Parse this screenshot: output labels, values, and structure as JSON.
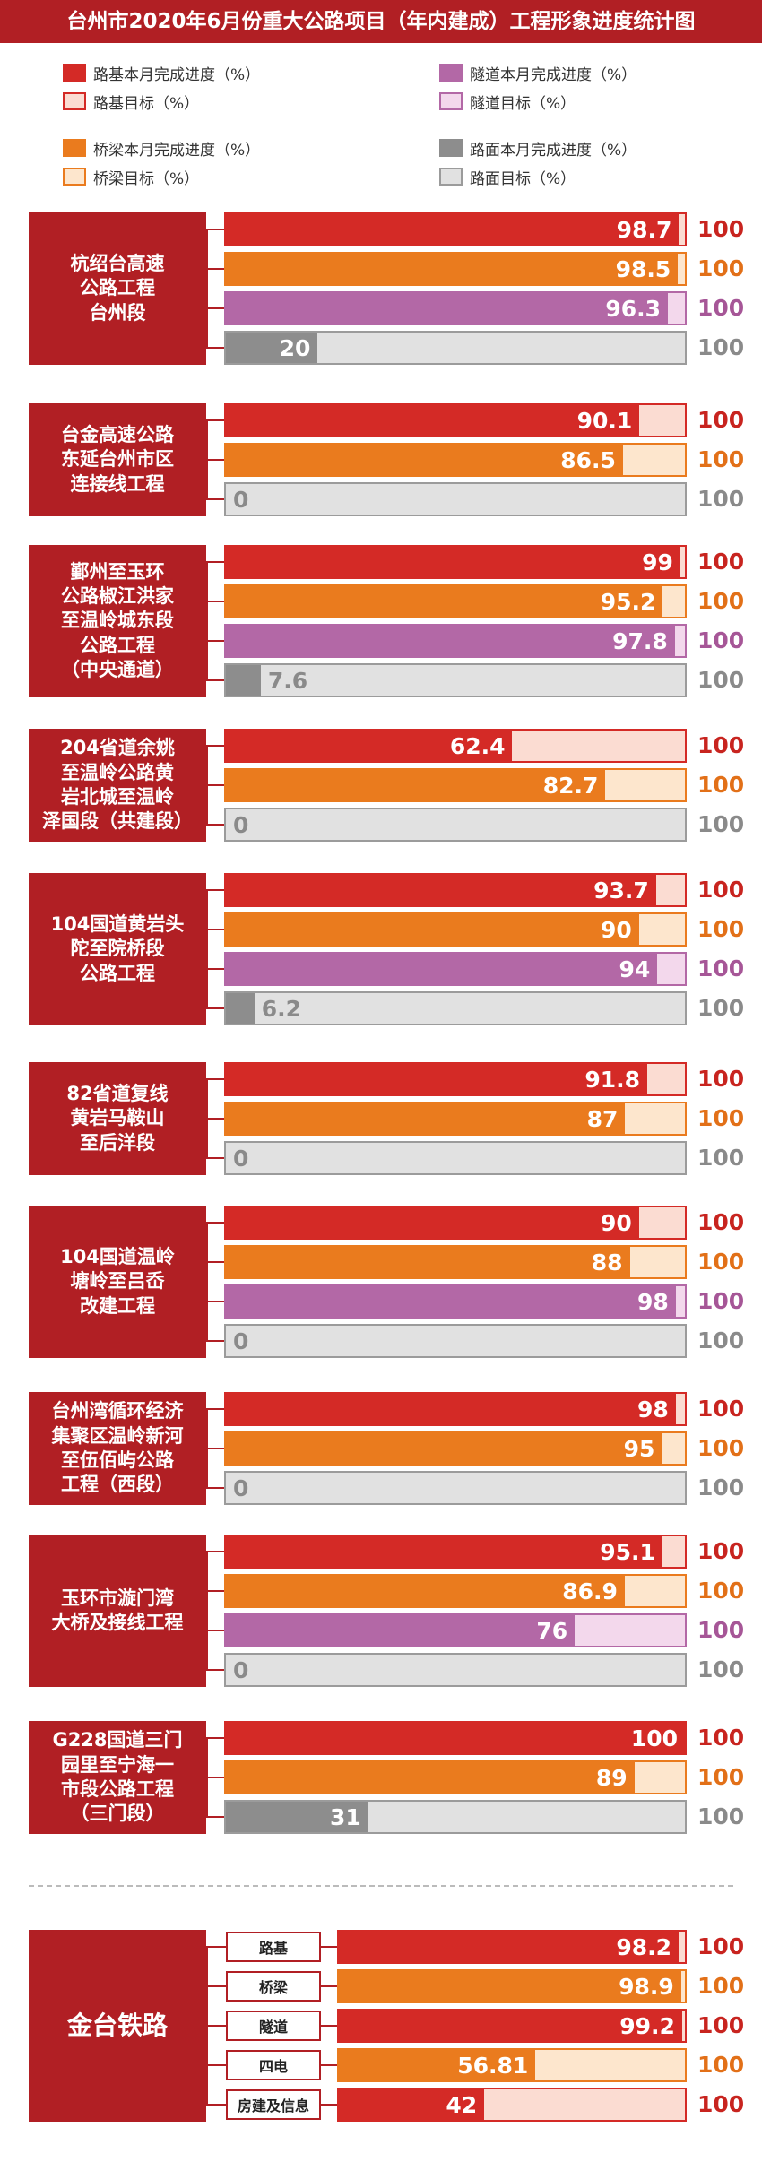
{
  "header": {
    "title": "台州市2020年6月份重大公路项目（年内建成）工程形象进度统计图"
  },
  "legend": [
    {
      "label": "路基本月完成进度（%）",
      "color": "#d42a26",
      "kind": "fill"
    },
    {
      "label": "路基目标（%）",
      "color": "#fbdcd2",
      "kind": "target",
      "border": "#d42a26"
    },
    {
      "label": "隧道本月完成进度（%）",
      "color": "#b368a6",
      "kind": "fill"
    },
    {
      "label": "隧道目标（%）",
      "color": "#f3d8ec",
      "kind": "target",
      "border": "#b368a6"
    },
    {
      "label": "桥梁本月完成进度（%）",
      "color": "#ea7b1e",
      "kind": "fill"
    },
    {
      "label": "桥梁目标（%）",
      "color": "#fde6cd",
      "kind": "target",
      "border": "#ea7b1e"
    },
    {
      "label": "路面本月完成进度（%）",
      "color": "#8d8d8d",
      "kind": "fill"
    },
    {
      "label": "路面目标（%）",
      "color": "#e1e1e1",
      "kind": "target",
      "border": "#9b9b9b"
    }
  ],
  "colors": {
    "subgrade": {
      "fill": "#d42a26",
      "target": "#fbdcd2",
      "border": "#d42a26",
      "label": "#c8241f"
    },
    "bridge": {
      "fill": "#ea7b1e",
      "target": "#fde6cd",
      "border": "#ea7b1e",
      "label": "#e27018"
    },
    "tunnel": {
      "fill": "#b368a6",
      "target": "#f3d8ec",
      "border": "#b368a6",
      "label": "#a65697"
    },
    "pavement": {
      "fill": "#8d8d8d",
      "target": "#e1e1e1",
      "border": "#9b9b9b",
      "label": "#8a8a8a"
    },
    "accent": "#b11f24"
  },
  "chart_data": {
    "type": "bar",
    "orientation": "horizontal",
    "xlim": [
      0,
      100
    ],
    "projects": [
      {
        "name": "杭绍台高速\n公路工程\n台州段",
        "bars": [
          {
            "cat": "subgrade",
            "value": 98.7,
            "target": 100
          },
          {
            "cat": "bridge",
            "value": 98.5,
            "target": 100
          },
          {
            "cat": "tunnel",
            "value": 96.3,
            "target": 100
          },
          {
            "cat": "pavement",
            "value": 20,
            "target": 100
          }
        ]
      },
      {
        "name": "台金高速公路\n东延台州市区\n连接线工程",
        "bars": [
          {
            "cat": "subgrade",
            "value": 90.1,
            "target": 100
          },
          {
            "cat": "bridge",
            "value": 86.5,
            "target": 100
          },
          {
            "cat": "pavement",
            "value": 0,
            "target": 100
          }
        ]
      },
      {
        "name": "鄞州至玉环\n公路椒江洪家\n至温岭城东段\n公路工程\n（中央通道）",
        "bars": [
          {
            "cat": "subgrade",
            "value": 99,
            "target": 100
          },
          {
            "cat": "bridge",
            "value": 95.2,
            "target": 100
          },
          {
            "cat": "tunnel",
            "value": 97.8,
            "target": 100
          },
          {
            "cat": "pavement",
            "value": 7.6,
            "target": 100
          }
        ]
      },
      {
        "name": "204省道余姚\n至温岭公路黄\n岩北城至温岭\n泽国段（共建段）",
        "bars": [
          {
            "cat": "subgrade",
            "value": 62.4,
            "target": 100
          },
          {
            "cat": "bridge",
            "value": 82.7,
            "target": 100
          },
          {
            "cat": "pavement",
            "value": 0,
            "target": 100
          }
        ]
      },
      {
        "name": "104国道黄岩头\n陀至院桥段\n公路工程",
        "bars": [
          {
            "cat": "subgrade",
            "value": 93.7,
            "target": 100
          },
          {
            "cat": "bridge",
            "value": 90,
            "target": 100
          },
          {
            "cat": "tunnel",
            "value": 94,
            "target": 100
          },
          {
            "cat": "pavement",
            "value": 6.2,
            "target": 100
          }
        ]
      },
      {
        "name": "82省道复线\n黄岩马鞍山\n至后洋段",
        "bars": [
          {
            "cat": "subgrade",
            "value": 91.8,
            "target": 100
          },
          {
            "cat": "bridge",
            "value": 87,
            "target": 100
          },
          {
            "cat": "pavement",
            "value": 0,
            "target": 100
          }
        ]
      },
      {
        "name": "104国道温岭\n塘岭至吕岙\n改建工程",
        "bars": [
          {
            "cat": "subgrade",
            "value": 90,
            "target": 100
          },
          {
            "cat": "bridge",
            "value": 88,
            "target": 100
          },
          {
            "cat": "tunnel",
            "value": 98,
            "target": 100
          },
          {
            "cat": "pavement",
            "value": 0,
            "target": 100
          }
        ]
      },
      {
        "name": "台州湾循环经济\n集聚区温岭新河\n至伍佰屿公路\n工程（西段）",
        "bars": [
          {
            "cat": "subgrade",
            "value": 98,
            "target": 100
          },
          {
            "cat": "bridge",
            "value": 95,
            "target": 100
          },
          {
            "cat": "pavement",
            "value": 0,
            "target": 100
          }
        ]
      },
      {
        "name": "玉环市漩门湾\n大桥及接线工程",
        "bars": [
          {
            "cat": "subgrade",
            "value": 95.1,
            "target": 100
          },
          {
            "cat": "bridge",
            "value": 86.9,
            "target": 100
          },
          {
            "cat": "tunnel",
            "value": 76,
            "target": 100
          },
          {
            "cat": "pavement",
            "value": 0,
            "target": 100
          }
        ]
      },
      {
        "name": "G228国道三门\n园里至宁海一\n市段公路工程\n（三门段）",
        "bars": [
          {
            "cat": "subgrade",
            "value": 100,
            "target": 100
          },
          {
            "cat": "bridge",
            "value": 89,
            "target": 100
          },
          {
            "cat": "pavement",
            "value": 31,
            "target": 100
          }
        ]
      }
    ],
    "railway": {
      "name": "金台铁路",
      "bars": [
        {
          "label": "路基",
          "cat": "subgrade",
          "value": 98.2,
          "target": 100
        },
        {
          "label": "桥梁",
          "cat": "bridge",
          "value": 98.9,
          "target": 100
        },
        {
          "label": "隧道",
          "cat": "subgrade",
          "value": 99.2,
          "target": 100
        },
        {
          "label": "四电",
          "cat": "bridge",
          "value": 56.81,
          "target": 100
        },
        {
          "label": "房建及信息",
          "cat": "subgrade",
          "value": 42,
          "target": 100
        }
      ]
    }
  }
}
